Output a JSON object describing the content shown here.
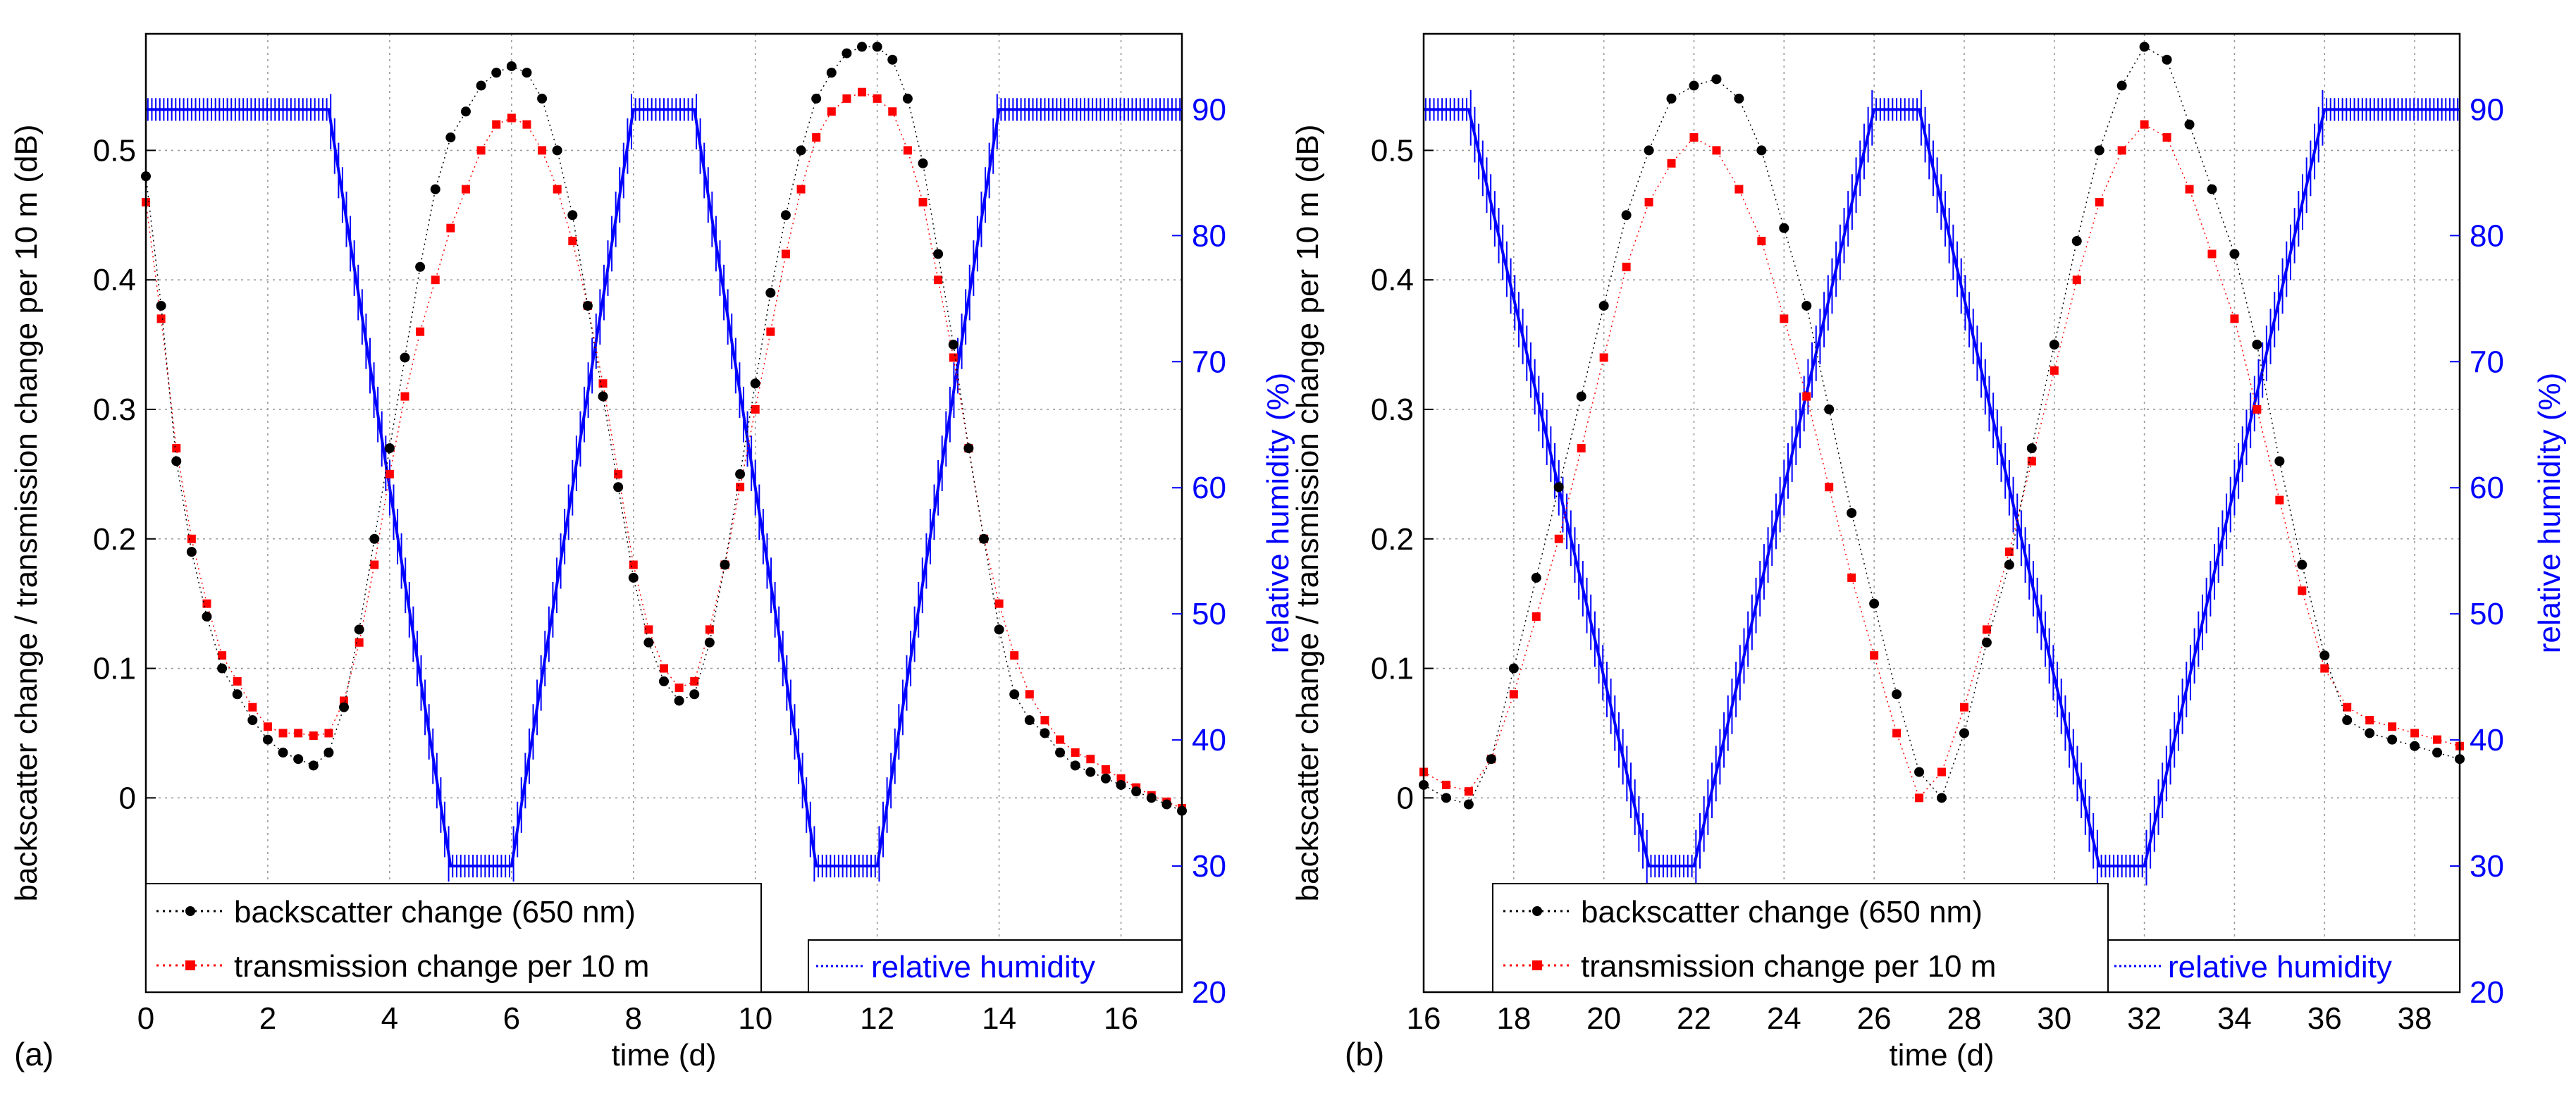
{
  "chart_data": [
    {
      "panel_label": "(a)",
      "type": "line",
      "xlabel": "time (d)",
      "ylabel": "backscatter change / transmission change per 10 m (dB)",
      "y2label": "relative humidity (%)",
      "xlim": [
        0,
        17
      ],
      "ylim": [
        -0.15,
        0.59
      ],
      "y2lim": [
        20,
        96
      ],
      "xticks": [
        0,
        2,
        4,
        6,
        8,
        10,
        12,
        14,
        16
      ],
      "yticks": [
        0,
        0.1,
        0.2,
        0.3,
        0.4,
        0.5
      ],
      "ytick_labels": [
        "0",
        "0.1",
        "0.2",
        "0.3",
        "0.4",
        "0.5"
      ],
      "y2ticks": [
        20,
        30,
        40,
        50,
        60,
        70,
        80,
        90
      ],
      "grid": true,
      "series": [
        {
          "name": "backscatter change (650 nm)",
          "axis": "left",
          "color": "#000000",
          "marker": "dot",
          "x": [
            0,
            0.25,
            0.5,
            0.75,
            1,
            1.25,
            1.5,
            1.75,
            2,
            2.25,
            2.5,
            2.75,
            3,
            3.25,
            3.5,
            3.75,
            4,
            4.25,
            4.5,
            4.75,
            5,
            5.25,
            5.5,
            5.75,
            6,
            6.25,
            6.5,
            6.75,
            7,
            7.25,
            7.5,
            7.75,
            8,
            8.25,
            8.5,
            8.75,
            9,
            9.25,
            9.5,
            9.75,
            10,
            10.25,
            10.5,
            10.75,
            11,
            11.25,
            11.5,
            11.75,
            12,
            12.25,
            12.5,
            12.75,
            13,
            13.25,
            13.5,
            13.75,
            14,
            14.25,
            14.5,
            14.75,
            15,
            15.25,
            15.5,
            15.75,
            16,
            16.25,
            16.5,
            16.75,
            17
          ],
          "values": [
            0.48,
            0.38,
            0.26,
            0.19,
            0.14,
            0.1,
            0.08,
            0.06,
            0.045,
            0.035,
            0.03,
            0.025,
            0.035,
            0.07,
            0.13,
            0.2,
            0.27,
            0.34,
            0.41,
            0.47,
            0.51,
            0.53,
            0.55,
            0.56,
            0.565,
            0.56,
            0.54,
            0.5,
            0.45,
            0.38,
            0.31,
            0.24,
            0.17,
            0.12,
            0.09,
            0.075,
            0.08,
            0.12,
            0.18,
            0.25,
            0.32,
            0.39,
            0.45,
            0.5,
            0.54,
            0.56,
            0.575,
            0.58,
            0.58,
            0.57,
            0.54,
            0.49,
            0.42,
            0.35,
            0.27,
            0.2,
            0.13,
            0.08,
            0.06,
            0.05,
            0.035,
            0.025,
            0.02,
            0.015,
            0.01,
            0.005,
            0.0,
            -0.005,
            -0.01
          ]
        },
        {
          "name": "transmission change per 10 m",
          "axis": "left",
          "color": "#ff0000",
          "marker": "square",
          "x": [
            0,
            0.25,
            0.5,
            0.75,
            1,
            1.25,
            1.5,
            1.75,
            2,
            2.25,
            2.5,
            2.75,
            3,
            3.25,
            3.5,
            3.75,
            4,
            4.25,
            4.5,
            4.75,
            5,
            5.25,
            5.5,
            5.75,
            6,
            6.25,
            6.5,
            6.75,
            7,
            7.25,
            7.5,
            7.75,
            8,
            8.25,
            8.5,
            8.75,
            9,
            9.25,
            9.5,
            9.75,
            10,
            10.25,
            10.5,
            10.75,
            11,
            11.25,
            11.5,
            11.75,
            12,
            12.25,
            12.5,
            12.75,
            13,
            13.25,
            13.5,
            13.75,
            14,
            14.25,
            14.5,
            14.75,
            15,
            15.25,
            15.5,
            15.75,
            16,
            16.25,
            16.5,
            16.75,
            17
          ],
          "values": [
            0.46,
            0.37,
            0.27,
            0.2,
            0.15,
            0.11,
            0.09,
            0.07,
            0.055,
            0.05,
            0.05,
            0.048,
            0.05,
            0.075,
            0.12,
            0.18,
            0.25,
            0.31,
            0.36,
            0.4,
            0.44,
            0.47,
            0.5,
            0.52,
            0.525,
            0.52,
            0.5,
            0.47,
            0.43,
            0.38,
            0.32,
            0.25,
            0.18,
            0.13,
            0.1,
            0.085,
            0.09,
            0.13,
            0.18,
            0.24,
            0.3,
            0.36,
            0.42,
            0.47,
            0.51,
            0.53,
            0.54,
            0.545,
            0.54,
            0.53,
            0.5,
            0.46,
            0.4,
            0.34,
            0.27,
            0.2,
            0.15,
            0.11,
            0.08,
            0.06,
            0.045,
            0.035,
            0.03,
            0.022,
            0.015,
            0.008,
            0.002,
            -0.003,
            -0.008
          ]
        },
        {
          "name": "relative humidity",
          "axis": "right",
          "color": "#0000ff",
          "marker": "line",
          "x": [
            0,
            3,
            5,
            6,
            8,
            9,
            11,
            12,
            14,
            17
          ],
          "values": [
            90,
            90,
            30,
            30,
            90,
            90,
            30,
            30,
            90,
            90
          ]
        }
      ],
      "legend": [
        "backscatter change (650 nm)",
        "transmission change per 10 m",
        "relative humidity"
      ]
    },
    {
      "panel_label": "(b)",
      "type": "line",
      "xlabel": "time (d)",
      "ylabel": "backscatter change / transmission change per 10 m (dB)",
      "y2label": "relative humidity (%)",
      "xlim": [
        16,
        39
      ],
      "ylim": [
        -0.15,
        0.59
      ],
      "y2lim": [
        20,
        96
      ],
      "xticks": [
        16,
        18,
        20,
        22,
        24,
        26,
        28,
        30,
        32,
        34,
        36,
        38
      ],
      "yticks": [
        0,
        0.1,
        0.2,
        0.3,
        0.4,
        0.5
      ],
      "ytick_labels": [
        "0",
        "0.1",
        "0.2",
        "0.3",
        "0.4",
        "0.5"
      ],
      "y2ticks": [
        20,
        30,
        40,
        50,
        60,
        70,
        80,
        90
      ],
      "grid": true,
      "series": [
        {
          "name": "backscatter change (650 nm)",
          "axis": "left",
          "color": "#000000",
          "marker": "dot",
          "x": [
            16,
            16.5,
            17,
            17.5,
            18,
            18.5,
            19,
            19.5,
            20,
            20.5,
            21,
            21.5,
            22,
            22.5,
            23,
            23.5,
            24,
            24.5,
            25,
            25.5,
            26,
            26.5,
            27,
            27.5,
            28,
            28.5,
            29,
            29.5,
            30,
            30.5,
            31,
            31.5,
            32,
            32.5,
            33,
            33.5,
            34,
            34.5,
            35,
            35.5,
            36,
            36.5,
            37,
            37.5,
            38,
            38.5,
            39
          ],
          "values": [
            0.01,
            0.0,
            -0.005,
            0.03,
            0.1,
            0.17,
            0.24,
            0.31,
            0.38,
            0.45,
            0.5,
            0.54,
            0.55,
            0.555,
            0.54,
            0.5,
            0.44,
            0.38,
            0.3,
            0.22,
            0.15,
            0.08,
            0.02,
            0.0,
            0.05,
            0.12,
            0.18,
            0.27,
            0.35,
            0.43,
            0.5,
            0.55,
            0.58,
            0.57,
            0.52,
            0.47,
            0.42,
            0.35,
            0.26,
            0.18,
            0.11,
            0.06,
            0.05,
            0.045,
            0.04,
            0.035,
            0.03
          ]
        },
        {
          "name": "transmission change per 10 m",
          "axis": "left",
          "color": "#ff0000",
          "marker": "square",
          "x": [
            16,
            16.5,
            17,
            17.5,
            18,
            18.5,
            19,
            19.5,
            20,
            20.5,
            21,
            21.5,
            22,
            22.5,
            23,
            23.5,
            24,
            24.5,
            25,
            25.5,
            26,
            26.5,
            27,
            27.5,
            28,
            28.5,
            29,
            29.5,
            30,
            30.5,
            31,
            31.5,
            32,
            32.5,
            33,
            33.5,
            34,
            34.5,
            35,
            35.5,
            36,
            36.5,
            37,
            37.5,
            38,
            38.5,
            39
          ],
          "values": [
            0.02,
            0.01,
            0.005,
            0.03,
            0.08,
            0.14,
            0.2,
            0.27,
            0.34,
            0.41,
            0.46,
            0.49,
            0.51,
            0.5,
            0.47,
            0.43,
            0.37,
            0.31,
            0.24,
            0.17,
            0.11,
            0.05,
            0.0,
            0.02,
            0.07,
            0.13,
            0.19,
            0.26,
            0.33,
            0.4,
            0.46,
            0.5,
            0.52,
            0.51,
            0.47,
            0.42,
            0.37,
            0.3,
            0.23,
            0.16,
            0.1,
            0.07,
            0.06,
            0.055,
            0.05,
            0.045,
            0.04
          ]
        },
        {
          "name": "relative humidity",
          "axis": "right",
          "color": "#0000ff",
          "marker": "line",
          "x": [
            16,
            17,
            21,
            22,
            26,
            27,
            31,
            32,
            36,
            39
          ],
          "values": [
            90,
            90,
            30,
            30,
            90,
            90,
            30,
            30,
            90,
            90
          ]
        }
      ],
      "legend": [
        "backscatter change (650 nm)",
        "transmission change per 10 m",
        "relative humidity"
      ]
    }
  ]
}
